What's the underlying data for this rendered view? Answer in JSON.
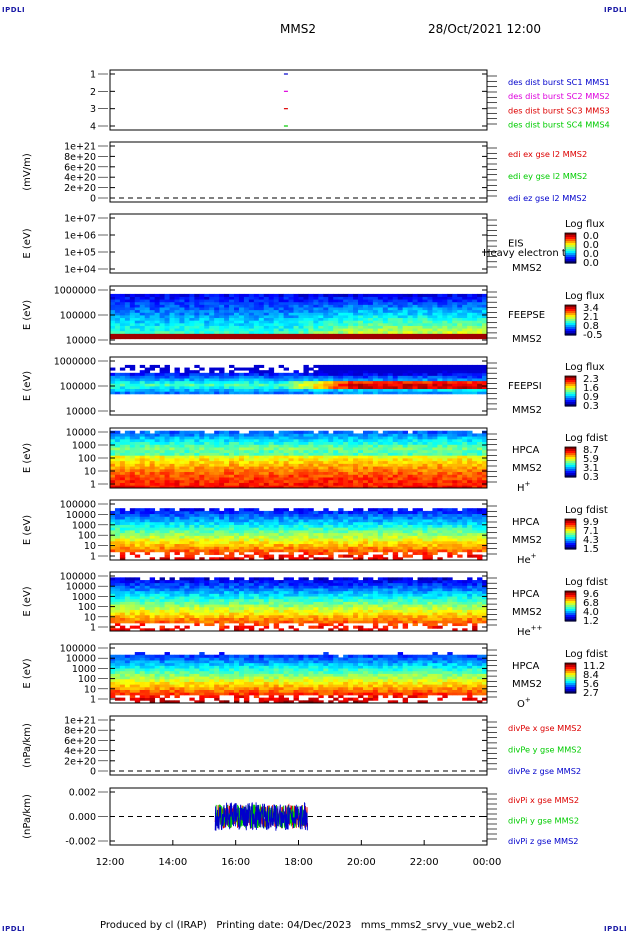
{
  "header": {
    "corner_label": "IPDLI",
    "spacecraft": "MMS2",
    "datetime": "28/Oct/2021 12:00"
  },
  "footer": {
    "produced_by": "Produced by cl (IRAP)",
    "printing_date": "Printing date: 04/Dec/2023",
    "script_name": "mms_mms2_srvy_vue_web2.cl"
  },
  "colors": {
    "red": "#dd0000",
    "green": "#00cc00",
    "blue": "#0000cc",
    "magenta": "#dd00dd",
    "panel_border": "#000000"
  },
  "chart_data": {
    "type": "heatmap",
    "x_ticks": [
      "12:00",
      "14:00",
      "16:00",
      "18:00",
      "20:00",
      "22:00",
      "00:00"
    ],
    "x_range_hours": [
      12,
      24
    ],
    "panels": [
      {
        "id": "burst",
        "type": "line",
        "ylabel": "",
        "yticks": [
          "1",
          "2",
          "3",
          "4"
        ],
        "legend": [
          {
            "text": "des dist burst SC1 MMS1",
            "color": "#0000cc"
          },
          {
            "text": "des dist burst SC2 MMS2",
            "color": "#dd00dd"
          },
          {
            "text": "des dist burst SC3 MMS3",
            "color": "#dd0000"
          },
          {
            "text": "des dist burst SC4 MMS4",
            "color": "#00cc00"
          }
        ],
        "marks": [
          {
            "hour": 17.6,
            "level": 4,
            "color": "#00cc00"
          },
          {
            "hour": 17.6,
            "level": 3,
            "color": "#dd0000"
          },
          {
            "hour": 17.6,
            "level": 2,
            "color": "#dd00dd"
          },
          {
            "hour": 17.6,
            "level": 1,
            "color": "#0000cc"
          }
        ]
      },
      {
        "id": "edi",
        "type": "line",
        "ylabel": "(mV/m)",
        "yticks": [
          "1e+21",
          "8e+20",
          "6e+20",
          "4e+20",
          "2e+20",
          "0"
        ],
        "legend": [
          {
            "text": "edi ex gse l2 MMS2",
            "color": "#dd0000"
          },
          {
            "text": "edi ey gse l2 MMS2",
            "color": "#00cc00"
          },
          {
            "text": "edi ez gse l2 MMS2",
            "color": "#0000cc"
          }
        ],
        "zero_line": true
      },
      {
        "id": "eis",
        "type": "heatmap",
        "ylabel": "E (eV)",
        "yticks": [
          "1e+07",
          "1e+06",
          "1e+05",
          "1e+04"
        ],
        "right_labels": [
          "EIS",
          "MMS2"
        ],
        "overlay_label": "Heavy electron to",
        "colorbar": {
          "title": "Log flux",
          "ticks": [
            "0.0",
            "0.0",
            "0.0",
            "0.0"
          ]
        },
        "empty": true
      },
      {
        "id": "feepse",
        "type": "heatmap",
        "ylabel": "E (eV)",
        "yticks": [
          "1000000",
          "100000",
          "10000"
        ],
        "right_labels": [
          "FEEPSE",
          "MMS2"
        ],
        "colorbar": {
          "title": "Log flux",
          "ticks": [
            "3.4",
            "2.1",
            "0.8",
            "-0.5"
          ]
        },
        "profile": "feepse"
      },
      {
        "id": "feepsi",
        "type": "heatmap",
        "ylabel": "E (eV)",
        "yticks": [
          "1000000",
          "100000",
          "10000"
        ],
        "right_labels": [
          "FEEPSI",
          "MMS2"
        ],
        "colorbar": {
          "title": "Log flux",
          "ticks": [
            "2.3",
            "1.6",
            "0.9",
            "0.3"
          ]
        },
        "profile": "feepsi"
      },
      {
        "id": "hpca_h",
        "type": "heatmap",
        "ylabel": "E (eV)",
        "yticks": [
          "10000",
          "1000",
          "100",
          "10",
          "1"
        ],
        "right_labels": [
          "HPCA",
          "MMS2",
          "H+"
        ],
        "colorbar": {
          "title": "Log fdist",
          "ticks": [
            "8.7",
            "5.9",
            "3.1",
            "0.3"
          ]
        },
        "profile": "h"
      },
      {
        "id": "hpca_he",
        "type": "heatmap",
        "ylabel": "E (eV)",
        "yticks": [
          "100000",
          "10000",
          "1000",
          "100",
          "10",
          "1"
        ],
        "right_labels": [
          "HPCA",
          "MMS2",
          "He+"
        ],
        "colorbar": {
          "title": "Log fdist",
          "ticks": [
            "9.9",
            "7.1",
            "4.3",
            "1.5"
          ]
        },
        "profile": "he"
      },
      {
        "id": "hpca_he2",
        "type": "heatmap",
        "ylabel": "E (eV)",
        "yticks": [
          "100000",
          "10000",
          "1000",
          "100",
          "10",
          "1"
        ],
        "right_labels": [
          "HPCA",
          "MMS2",
          "He++"
        ],
        "colorbar": {
          "title": "Log fdist",
          "ticks": [
            "9.6",
            "6.8",
            "4.0",
            "1.2"
          ]
        },
        "profile": "he2"
      },
      {
        "id": "hpca_o",
        "type": "heatmap",
        "ylabel": "E (eV)",
        "yticks": [
          "100000",
          "10000",
          "1000",
          "100",
          "10",
          "1"
        ],
        "right_labels": [
          "HPCA",
          "MMS2",
          "O+"
        ],
        "colorbar": {
          "title": "Log fdist",
          "ticks": [
            "11.2",
            "8.4",
            "5.6",
            "2.7"
          ]
        },
        "profile": "o"
      },
      {
        "id": "divpe",
        "type": "line",
        "ylabel": "(nPa/km)",
        "yticks": [
          "1e+21",
          "8e+20",
          "6e+20",
          "4e+20",
          "2e+20",
          "0"
        ],
        "legend": [
          {
            "text": "divPe x gse MMS2",
            "color": "#dd0000"
          },
          {
            "text": "divPe y gse MMS2",
            "color": "#00cc00"
          },
          {
            "text": "divPe z gse MMS2",
            "color": "#0000cc"
          }
        ],
        "zero_line": true
      },
      {
        "id": "divpi",
        "type": "line",
        "ylabel": "(nPa/km)",
        "yticks": [
          "0.002",
          "0.000",
          "-0.002"
        ],
        "ylim": [
          -0.003,
          0.003
        ],
        "legend": [
          {
            "text": "divPi x gse MMS2",
            "color": "#dd0000"
          },
          {
            "text": "divPi y gse MMS2",
            "color": "#00cc00"
          },
          {
            "text": "divPi z gse MMS2",
            "color": "#0000cc"
          }
        ],
        "zero_line": true,
        "data_interval_hours": [
          15.35,
          18.3
        ],
        "data_amplitude": 0.0015
      }
    ]
  }
}
